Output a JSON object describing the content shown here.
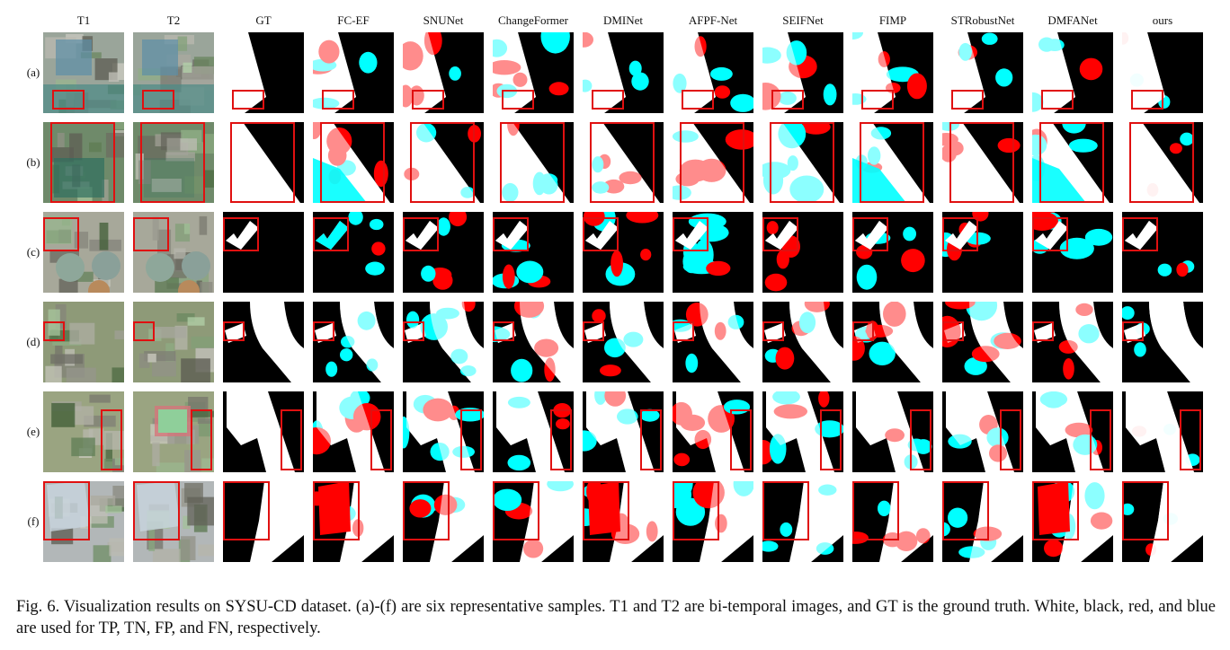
{
  "columns": [
    "T1",
    "T2",
    "GT",
    "FC-EF",
    "SNUNet",
    "ChangeFormer",
    "DMINet",
    "AFPF-Net",
    "SEIFNet",
    "FIMP",
    "STRobustNet",
    "DMFANet",
    "ours"
  ],
  "rows": [
    "(a)",
    "(b)",
    "(c)",
    "(d)",
    "(e)",
    "(f)"
  ],
  "caption": "Fig. 6.  Visualization results on SYSU-CD dataset. (a)-(f) are six representative samples. T1 and T2 are bi-temporal images, and GT is the ground truth. White, black, red, and blue are used for TP, TN, FP, and FN, respectively.",
  "colors": {
    "tp": "#ffffff",
    "tn": "#000000",
    "fp": "#ff0000",
    "fn": "#00ffff",
    "box": "#e01010"
  }
}
